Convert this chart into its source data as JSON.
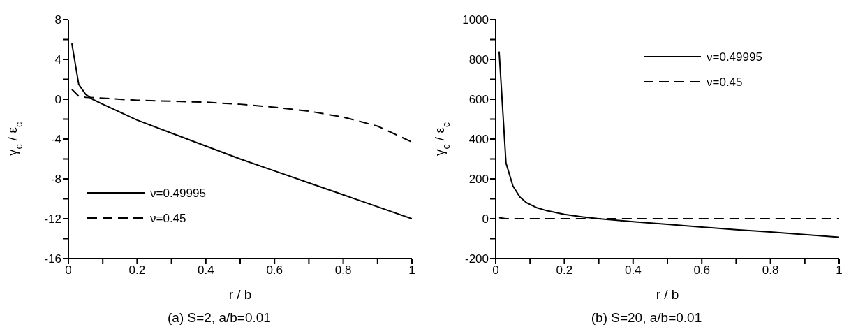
{
  "chart_data": [
    {
      "type": "line",
      "title": "(a) S=2, a/b=0.01",
      "xlabel": "r / b",
      "ylabel": "γ$_{c}$ / ε$_{c}$",
      "xlim": [
        0,
        1
      ],
      "ylim": [
        -16,
        8
      ],
      "xticks": [
        0,
        {
          "value": 0.1,
          "label": null
        },
        0.2,
        {
          "value": 0.3,
          "label": null
        },
        0.4,
        {
          "value": 0.5,
          "label": null
        },
        0.6,
        {
          "value": 0.7,
          "label": null
        },
        0.8,
        {
          "value": 0.9,
          "label": null
        },
        1
      ],
      "yticks": [
        -16,
        {
          "value": -14,
          "label": null
        },
        -12,
        {
          "value": -10,
          "label": null
        },
        -8,
        {
          "value": -6,
          "label": null
        },
        -4,
        {
          "value": -2,
          "label": null
        },
        0,
        {
          "value": 2,
          "label": null
        },
        4,
        {
          "value": 6,
          "label": null
        },
        8
      ],
      "legend": "bottom left",
      "grid": false,
      "series": [
        {
          "name": "ν=0.49995",
          "color": "#000000",
          "line_style": "solid",
          "x": [
            0.01,
            0.03,
            0.05,
            0.07,
            0.1,
            0.2,
            0.3,
            0.4,
            0.5,
            0.6,
            0.7,
            0.8,
            0.9,
            1.0
          ],
          "values": [
            5.6,
            1.5,
            0.5,
            0,
            -0.5,
            -2.1,
            -3.4,
            -4.7,
            -6.0,
            -7.2,
            -8.4,
            -9.6,
            -10.8,
            -12.0
          ]
        },
        {
          "name": "ν=0.45",
          "color": "#000000",
          "line_style": "dashed",
          "x": [
            0.01,
            0.03,
            0.05,
            0.1,
            0.2,
            0.3,
            0.4,
            0.5,
            0.6,
            0.7,
            0.8,
            0.9,
            1.0
          ],
          "values": [
            1.0,
            0.3,
            0.2,
            0.1,
            -0.1,
            -0.2,
            -0.3,
            -0.5,
            -0.8,
            -1.2,
            -1.8,
            -2.7,
            -4.3
          ]
        }
      ]
    },
    {
      "type": "line",
      "title": "(b) S=20, a/b=0.01",
      "xlabel": "r / b",
      "ylabel": "γ$_{c}$ / ε$_{c}$",
      "xlim": [
        0,
        1
      ],
      "ylim": [
        -200,
        1000
      ],
      "xticks": [
        0,
        {
          "value": 0.1,
          "label": null
        },
        0.2,
        {
          "value": 0.3,
          "label": null
        },
        0.4,
        {
          "value": 0.5,
          "label": null
        },
        0.6,
        {
          "value": 0.7,
          "label": null
        },
        0.8,
        {
          "value": 0.9,
          "label": null
        },
        1
      ],
      "yticks": [
        -200,
        {
          "value": -100,
          "label": null
        },
        0,
        {
          "value": 100,
          "label": null
        },
        200,
        {
          "value": 300,
          "label": null
        },
        400,
        {
          "value": 500,
          "label": null
        },
        600,
        {
          "value": 700,
          "label": null
        },
        800,
        {
          "value": 900,
          "label": null
        },
        1000
      ],
      "legend": "top right",
      "grid": false,
      "series": [
        {
          "name": "ν=0.49995",
          "color": "#000000",
          "line_style": "solid",
          "x": [
            0.01,
            0.03,
            0.05,
            0.07,
            0.09,
            0.12,
            0.15,
            0.2,
            0.25,
            0.3,
            0.4,
            0.5,
            0.6,
            0.7,
            0.8,
            0.9,
            1.0
          ],
          "values": [
            840,
            280,
            165,
            110,
            80,
            55,
            40,
            22,
            10,
            0,
            -15,
            -28,
            -42,
            -55,
            -67,
            -80,
            -93
          ]
        },
        {
          "name": "ν=0.45",
          "color": "#000000",
          "line_style": "dashed",
          "x": [
            0.01,
            0.03,
            0.1,
            0.5,
            1.0
          ],
          "values": [
            5,
            0,
            0,
            0,
            0
          ]
        }
      ]
    }
  ]
}
